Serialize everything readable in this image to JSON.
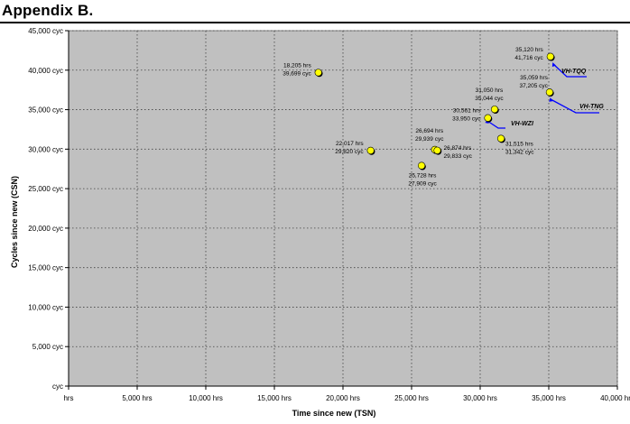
{
  "heading": "Appendix B.",
  "chart_data": {
    "type": "scatter",
    "title": "",
    "xlabel": "Time since new (TSN)",
    "ylabel": "Cycles since new (CSN)",
    "xlim": [
      0,
      40000
    ],
    "ylim": [
      0,
      45000
    ],
    "x_ticks": [
      0,
      5000,
      10000,
      15000,
      20000,
      25000,
      30000,
      35000,
      40000
    ],
    "y_ticks": [
      0,
      5000,
      10000,
      15000,
      20000,
      25000,
      30000,
      35000,
      40000,
      45000
    ],
    "x_tick_labels": [
      "hrs",
      "5,000 hrs",
      "10,000 hrs",
      "15,000 hrs",
      "20,000 hrs",
      "25,000 hrs",
      "30,000 hrs",
      "35,000 hrs",
      "40,000 hrs"
    ],
    "y_tick_labels": [
      "cyc",
      "5,000 cyc",
      "10,000 cyc",
      "15,000 cyc",
      "20,000 cyc",
      "25,000 cyc",
      "30,000 cyc",
      "35,000 cyc",
      "40,000 cyc",
      "45,000 cyc"
    ],
    "grid": true,
    "plot_background": "#c0c0c0",
    "grid_color": "#404040",
    "marker_color": "#ffff00",
    "arrow_color": "#0000ff",
    "points": [
      {
        "x": 18205,
        "y": 39699,
        "label_hrs": "18,205 hrs",
        "label_cyc": "39,699 cyc",
        "label_side": "left"
      },
      {
        "x": 22017,
        "y": 29820,
        "label_hrs": "22,017 hrs",
        "label_cyc": "29,820 cyc",
        "label_side": "left"
      },
      {
        "x": 25728,
        "y": 27909,
        "label_hrs": "25,728 hrs",
        "label_cyc": "27,909 cyc",
        "label_side": "below"
      },
      {
        "x": 26694,
        "y": 29939,
        "label_hrs": "26,694 hrs",
        "label_cyc": "29,939 cyc",
        "label_side": "above"
      },
      {
        "x": 26874,
        "y": 29833,
        "label_hrs": "26,874 hrs",
        "label_cyc": "29,833 cyc",
        "label_side": "right"
      },
      {
        "x": 30561,
        "y": 33950,
        "label_hrs": "30,561 hrs",
        "label_cyc": "33,950 cyc",
        "label_side": "left"
      },
      {
        "x": 31050,
        "y": 35044,
        "label_hrs": "31,050 hrs",
        "label_cyc": "35,044 cyc",
        "label_side": "above"
      },
      {
        "x": 31515,
        "y": 31342,
        "label_hrs": "31,515 hrs",
        "label_cyc": "31,342 cyc",
        "label_side": "belowright"
      },
      {
        "x": 35059,
        "y": 37205,
        "label_hrs": "35,059 hrs",
        "label_cyc": "37,205 cyc",
        "label_side": "aboveleft"
      },
      {
        "x": 35120,
        "y": 41716,
        "label_hrs": "35,120 hrs",
        "label_cyc": "41,716 cyc",
        "label_side": "left"
      }
    ],
    "annotations": [
      {
        "text": "VH-TQQ",
        "target_x": 35120,
        "target_y": 41716
      },
      {
        "text": "VH-TNG",
        "target_x": 35059,
        "target_y": 37205
      },
      {
        "text": "VH-WZI",
        "target_x": 30561,
        "target_y": 33950
      }
    ]
  }
}
